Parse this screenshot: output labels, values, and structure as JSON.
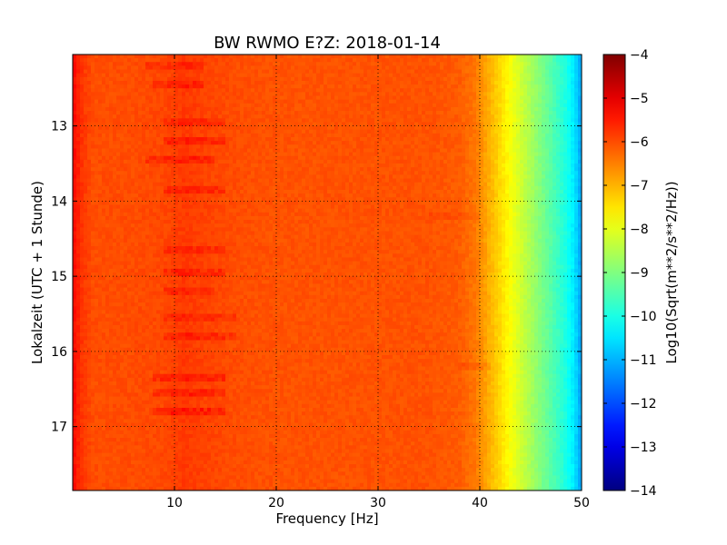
{
  "chart_data": {
    "type": "heatmap",
    "title": "BW RWMO E?Z: 2018-01-14",
    "xlabel": "Frequency [Hz]",
    "ylabel": "Lokalzeit (UTC + 1 Stunde)",
    "xlim": [
      0,
      50
    ],
    "ylim": [
      17.85,
      12.05
    ],
    "x_ticks": [
      10,
      20,
      30,
      40,
      50
    ],
    "y_ticks": [
      13,
      14,
      15,
      16,
      17
    ],
    "grid": true,
    "colormap": "jet",
    "colorbar": {
      "label": "Log10(Sqrt(m**2/s**2/Hz))",
      "range": [
        -14,
        -4
      ],
      "ticks": [
        -4,
        -5,
        -6,
        -7,
        -8,
        -9,
        -10,
        -11,
        -12,
        -13,
        -14
      ]
    },
    "spectrum_profile": {
      "frequency_hz": [
        0,
        0.4,
        1,
        2,
        5,
        9,
        11,
        13,
        16,
        20,
        25,
        30,
        35,
        38,
        39.5,
        40.5,
        41.5,
        42.5,
        43.5,
        44.5,
        45.5,
        46.5,
        47.5,
        48.5,
        49.3,
        49.8,
        50
      ],
      "log_amplitude": [
        -5.3,
        -5.5,
        -5.8,
        -6.0,
        -6.0,
        -5.95,
        -5.8,
        -5.9,
        -6.0,
        -6.05,
        -6.05,
        -6.05,
        -6.05,
        -6.15,
        -6.4,
        -6.8,
        -7.2,
        -7.6,
        -8.0,
        -8.4,
        -8.8,
        -9.2,
        -9.6,
        -10.0,
        -10.5,
        -11.0,
        -11.2
      ]
    },
    "enhanced_bands": [
      {
        "time": 12.2,
        "freq_start": 7,
        "freq_end": 13,
        "delta": 0.25
      },
      {
        "time": 12.45,
        "freq_start": 8,
        "freq_end": 13,
        "delta": 0.35
      },
      {
        "time": 12.95,
        "freq_start": 9,
        "freq_end": 15,
        "delta": 0.3
      },
      {
        "time": 13.2,
        "freq_start": 9,
        "freq_end": 15,
        "delta": 0.35
      },
      {
        "time": 13.45,
        "freq_start": 7,
        "freq_end": 14,
        "delta": 0.35
      },
      {
        "time": 13.85,
        "freq_start": 9,
        "freq_end": 15,
        "delta": 0.3
      },
      {
        "time": 14.65,
        "freq_start": 9,
        "freq_end": 15,
        "delta": 0.3
      },
      {
        "time": 14.95,
        "freq_start": 9,
        "freq_end": 15,
        "delta": 0.35
      },
      {
        "time": 15.2,
        "freq_start": 9,
        "freq_end": 14,
        "delta": 0.3
      },
      {
        "time": 15.55,
        "freq_start": 9,
        "freq_end": 16,
        "delta": 0.3
      },
      {
        "time": 15.8,
        "freq_start": 9,
        "freq_end": 16,
        "delta": 0.3
      },
      {
        "time": 16.35,
        "freq_start": 8,
        "freq_end": 15,
        "delta": 0.35
      },
      {
        "time": 16.55,
        "freq_start": 8,
        "freq_end": 15,
        "delta": 0.35
      },
      {
        "time": 16.8,
        "freq_start": 8,
        "freq_end": 15,
        "delta": 0.4
      },
      {
        "time": 14.2,
        "freq_start": 35,
        "freq_end": 40,
        "delta": 0.15
      },
      {
        "time": 16.2,
        "freq_start": 38,
        "freq_end": 41,
        "delta": 0.2
      }
    ]
  }
}
